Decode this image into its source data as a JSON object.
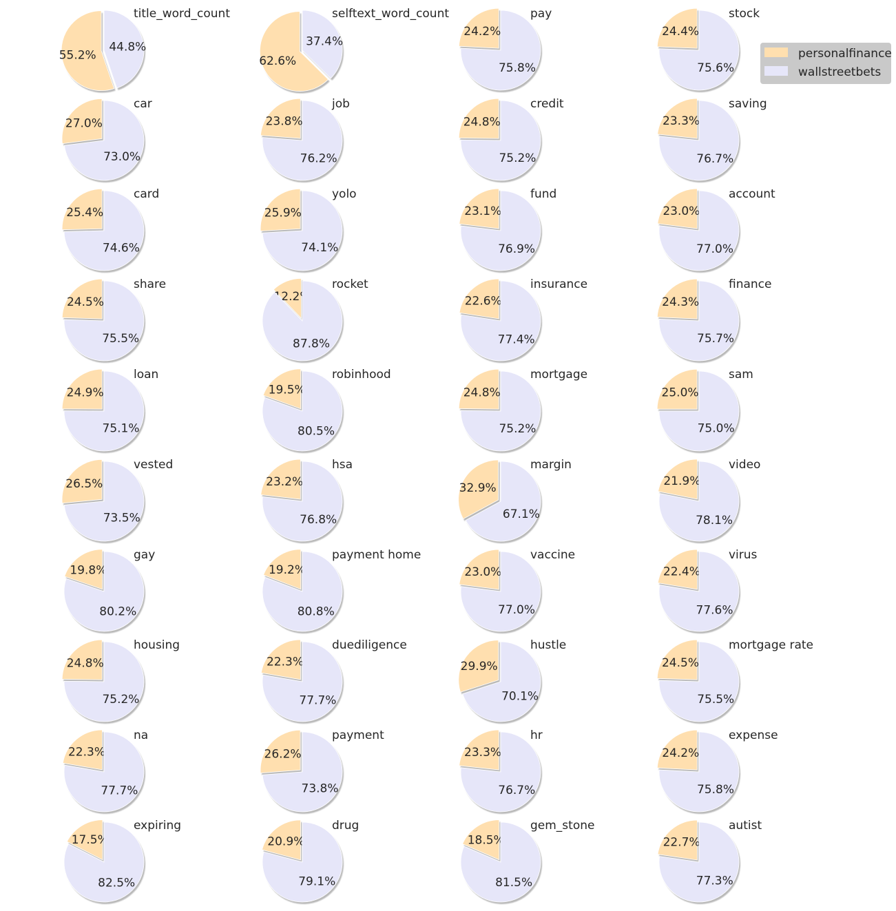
{
  "colors": {
    "personalfinance": "#ffdfaf",
    "wallstreetbets": "#e6e6f9",
    "edge": "#8a8a8a",
    "shadow": "#7f7f7f",
    "legend_bg": "#c9c9c9"
  },
  "chart_data": {
    "type": "pie",
    "grid": false,
    "legend_placement": "top-right",
    "series_names": [
      "personalfinance",
      "wallstreetbets"
    ],
    "pies": [
      {
        "title": "title_word_count",
        "values": [
          55.2,
          44.8
        ],
        "labels": [
          "55.2%",
          "44.8%"
        ]
      },
      {
        "title": "selftext_word_count",
        "values": [
          62.6,
          37.4
        ],
        "labels": [
          "62.6%",
          "37.4%"
        ]
      },
      {
        "title": "pay",
        "values": [
          24.2,
          75.8
        ],
        "labels": [
          "24.2%",
          "75.8%"
        ]
      },
      {
        "title": "stock",
        "values": [
          24.4,
          75.6
        ],
        "labels": [
          "24.4%",
          "75.6%"
        ]
      },
      {
        "title": "car",
        "values": [
          27.0,
          73.0
        ],
        "labels": [
          "27.0%",
          "73.0%"
        ]
      },
      {
        "title": "job",
        "values": [
          23.8,
          76.2
        ],
        "labels": [
          "23.8%",
          "76.2%"
        ]
      },
      {
        "title": "credit",
        "values": [
          24.8,
          75.2
        ],
        "labels": [
          "24.8%",
          "75.2%"
        ]
      },
      {
        "title": "saving",
        "values": [
          23.3,
          76.7
        ],
        "labels": [
          "23.3%",
          "76.7%"
        ]
      },
      {
        "title": "card",
        "values": [
          25.4,
          74.6
        ],
        "labels": [
          "25.4%",
          "74.6%"
        ]
      },
      {
        "title": "yolo",
        "values": [
          25.9,
          74.1
        ],
        "labels": [
          "25.9%",
          "74.1%"
        ]
      },
      {
        "title": "fund",
        "values": [
          23.1,
          76.9
        ],
        "labels": [
          "23.1%",
          "76.9%"
        ]
      },
      {
        "title": "account",
        "values": [
          23.0,
          77.0
        ],
        "labels": [
          "23.0%",
          "77.0%"
        ]
      },
      {
        "title": "share",
        "values": [
          24.5,
          75.5
        ],
        "labels": [
          "24.5%",
          "75.5%"
        ]
      },
      {
        "title": "rocket",
        "values": [
          12.2,
          87.8
        ],
        "labels": [
          "12.2%",
          "87.8%"
        ]
      },
      {
        "title": "insurance",
        "values": [
          22.6,
          77.4
        ],
        "labels": [
          "22.6%",
          "77.4%"
        ]
      },
      {
        "title": "finance",
        "values": [
          24.3,
          75.7
        ],
        "labels": [
          "24.3%",
          "75.7%"
        ]
      },
      {
        "title": "loan",
        "values": [
          24.9,
          75.1
        ],
        "labels": [
          "24.9%",
          "75.1%"
        ]
      },
      {
        "title": "robinhood",
        "values": [
          19.5,
          80.5
        ],
        "labels": [
          "19.5%",
          "80.5%"
        ]
      },
      {
        "title": "mortgage",
        "values": [
          24.8,
          75.2
        ],
        "labels": [
          "24.8%",
          "75.2%"
        ]
      },
      {
        "title": "sam",
        "values": [
          25.0,
          75.0
        ],
        "labels": [
          "25.0%",
          "75.0%"
        ]
      },
      {
        "title": "vested",
        "values": [
          26.5,
          73.5
        ],
        "labels": [
          "26.5%",
          "73.5%"
        ]
      },
      {
        "title": "hsa",
        "values": [
          23.2,
          76.8
        ],
        "labels": [
          "23.2%",
          "76.8%"
        ]
      },
      {
        "title": "margin",
        "values": [
          32.9,
          67.1
        ],
        "labels": [
          "32.9%",
          "67.1%"
        ]
      },
      {
        "title": "video",
        "values": [
          21.9,
          78.1
        ],
        "labels": [
          "21.9%",
          "78.1%"
        ]
      },
      {
        "title": "gay",
        "values": [
          19.8,
          80.2
        ],
        "labels": [
          "19.8%",
          "80.2%"
        ]
      },
      {
        "title": "payment home",
        "values": [
          19.2,
          80.8
        ],
        "labels": [
          "19.2%",
          "80.8%"
        ]
      },
      {
        "title": "vaccine",
        "values": [
          23.0,
          77.0
        ],
        "labels": [
          "23.0%",
          "77.0%"
        ]
      },
      {
        "title": "virus",
        "values": [
          22.4,
          77.6
        ],
        "labels": [
          "22.4%",
          "77.6%"
        ]
      },
      {
        "title": "housing",
        "values": [
          24.8,
          75.2
        ],
        "labels": [
          "24.8%",
          "75.2%"
        ]
      },
      {
        "title": "duediligence",
        "values": [
          22.3,
          77.7
        ],
        "labels": [
          "22.3%",
          "77.7%"
        ]
      },
      {
        "title": "hustle",
        "values": [
          29.9,
          70.1
        ],
        "labels": [
          "29.9%",
          "70.1%"
        ]
      },
      {
        "title": "mortgage rate",
        "values": [
          24.5,
          75.5
        ],
        "labels": [
          "24.5%",
          "75.5%"
        ]
      },
      {
        "title": "na",
        "values": [
          22.3,
          77.7
        ],
        "labels": [
          "22.3%",
          "77.7%"
        ]
      },
      {
        "title": "payment",
        "values": [
          26.2,
          73.8
        ],
        "labels": [
          "26.2%",
          "73.8%"
        ]
      },
      {
        "title": "hr",
        "values": [
          23.3,
          76.7
        ],
        "labels": [
          "23.3%",
          "76.7%"
        ]
      },
      {
        "title": "expense",
        "values": [
          24.2,
          75.8
        ],
        "labels": [
          "24.2%",
          "75.8%"
        ]
      },
      {
        "title": "expiring",
        "values": [
          17.5,
          82.5
        ],
        "labels": [
          "17.5%",
          "82.5%"
        ]
      },
      {
        "title": "drug",
        "values": [
          20.9,
          79.1
        ],
        "labels": [
          "20.9%",
          "79.1%"
        ]
      },
      {
        "title": "gem_stone",
        "values": [
          18.5,
          81.5
        ],
        "labels": [
          "18.5%",
          "81.5%"
        ]
      },
      {
        "title": "autist",
        "values": [
          22.7,
          77.3
        ],
        "labels": [
          "22.7%",
          "77.3%"
        ]
      }
    ]
  },
  "legend": {
    "items": [
      {
        "label": "personalfinance"
      },
      {
        "label": "wallstreetbets"
      }
    ]
  }
}
